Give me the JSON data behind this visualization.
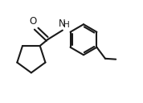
{
  "background_color": "#ffffff",
  "line_color": "#1a1a1a",
  "line_width": 1.5,
  "figsize": [
    1.78,
    1.28
  ],
  "dpi": 100,
  "font_size_atom": 8.5,
  "xlim": [
    0,
    10
  ],
  "ylim": [
    0,
    7.2
  ]
}
